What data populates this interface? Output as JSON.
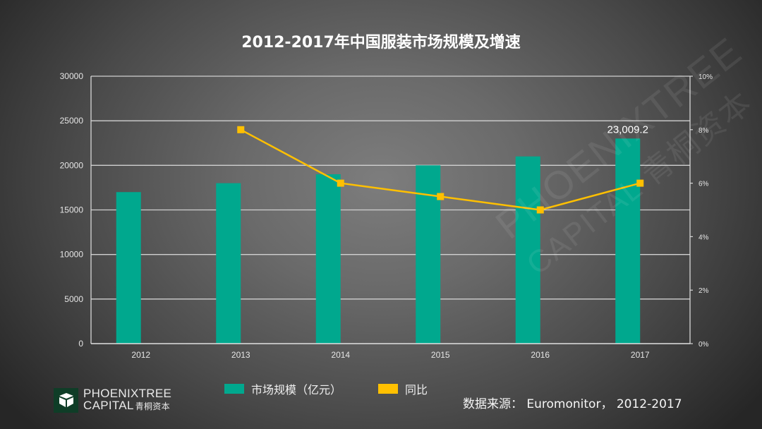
{
  "title": "2012-2017年中国服装市场规模及增速",
  "chart_data": {
    "type": "bar+line",
    "title": "2012-2017年中国服装市场规模及增速",
    "categories": [
      "2012",
      "2013",
      "2014",
      "2015",
      "2016",
      "2017"
    ],
    "series": [
      {
        "name": "市场规模（亿元）",
        "type": "bar",
        "axis": "left",
        "color": "#00a88e",
        "values": [
          17000,
          18000,
          19000,
          20000,
          21000,
          23009.2
        ]
      },
      {
        "name": "同比",
        "type": "line",
        "axis": "right",
        "color": "#ffc000",
        "values": [
          null,
          8.0,
          6.0,
          5.5,
          5.0,
          6.0
        ]
      }
    ],
    "data_labels": [
      {
        "category": "2017",
        "series": "市场规模（亿元）",
        "text": "23,009.2"
      }
    ],
    "y_left": {
      "min": 0,
      "max": 30000,
      "ticks": [
        "0",
        "5000",
        "10000",
        "15000",
        "20000",
        "25000",
        "30000"
      ]
    },
    "y_right": {
      "min": 0,
      "max": 10,
      "ticks": [
        "0%",
        "2%",
        "4%",
        "6%",
        "8%",
        "10%"
      ]
    },
    "xlabel": "",
    "ylabel": "",
    "grid": true,
    "legend_position": "bottom"
  },
  "legend": {
    "items": [
      {
        "label": "市场规模（亿元）",
        "color": "#00a88e"
      },
      {
        "label": "同比",
        "color": "#ffc000"
      }
    ]
  },
  "source": "数据来源： Euromonitor， 2012-2017",
  "logo": {
    "line1": "PHOENIXTREE",
    "line2": "CAPITAL",
    "cn": "青桐资本"
  },
  "watermark": {
    "line1": "PHOENIXTREE",
    "line2": "CAPITAL 青桐资本"
  }
}
